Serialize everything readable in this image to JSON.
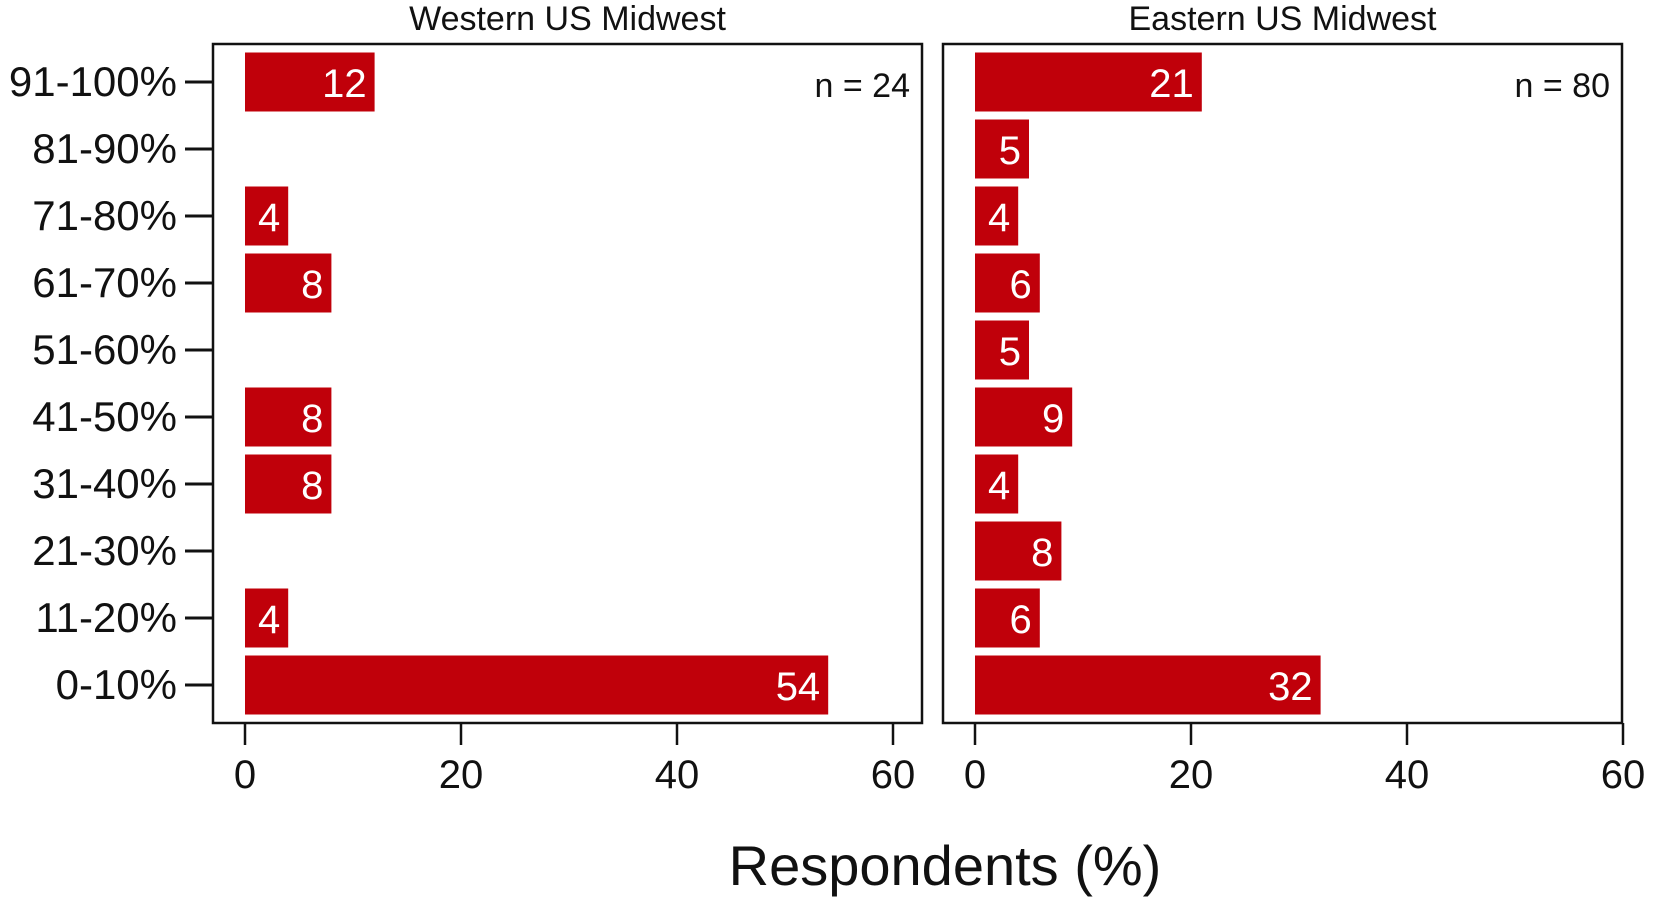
{
  "chart_data": {
    "type": "bar",
    "orientation": "horizontal",
    "categories": [
      "91-100%",
      "81-90%",
      "71-80%",
      "61-70%",
      "51-60%",
      "41-50%",
      "31-40%",
      "21-30%",
      "11-20%",
      "0-10%"
    ],
    "xlabel": "Respondents (%)",
    "xlim": [
      0,
      60
    ],
    "xticks": [
      "0",
      "20",
      "40",
      "60"
    ],
    "bar_color": "#c0000a",
    "grid": false,
    "panels": [
      {
        "title": "Western US Midwest",
        "n_label": "n = 24",
        "values": [
          12,
          null,
          4,
          8,
          null,
          8,
          8,
          null,
          4,
          54
        ]
      },
      {
        "title": "Eastern US Midwest",
        "n_label": "n = 80",
        "values": [
          21,
          5,
          4,
          6,
          5,
          9,
          4,
          8,
          6,
          32
        ]
      }
    ]
  }
}
